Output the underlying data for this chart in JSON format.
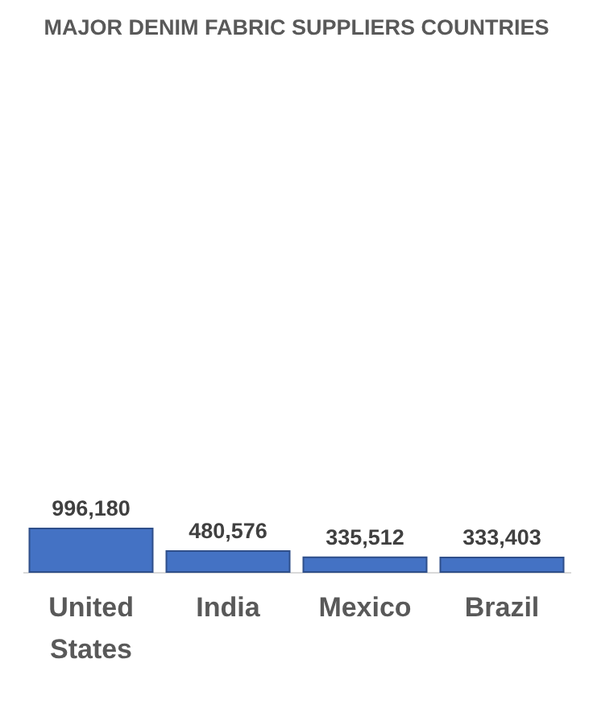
{
  "chart_data": {
    "type": "bar",
    "title": "MAJOR DENIM FABRIC SUPPLIERS COUNTRIES",
    "categories": [
      "United States",
      "India",
      "Mexico",
      "Brazil"
    ],
    "values": [
      996180,
      480576,
      335512,
      333403
    ],
    "value_labels": [
      "996,180",
      "480,576",
      "335,512",
      "333,403"
    ],
    "color": "#4472c4"
  }
}
